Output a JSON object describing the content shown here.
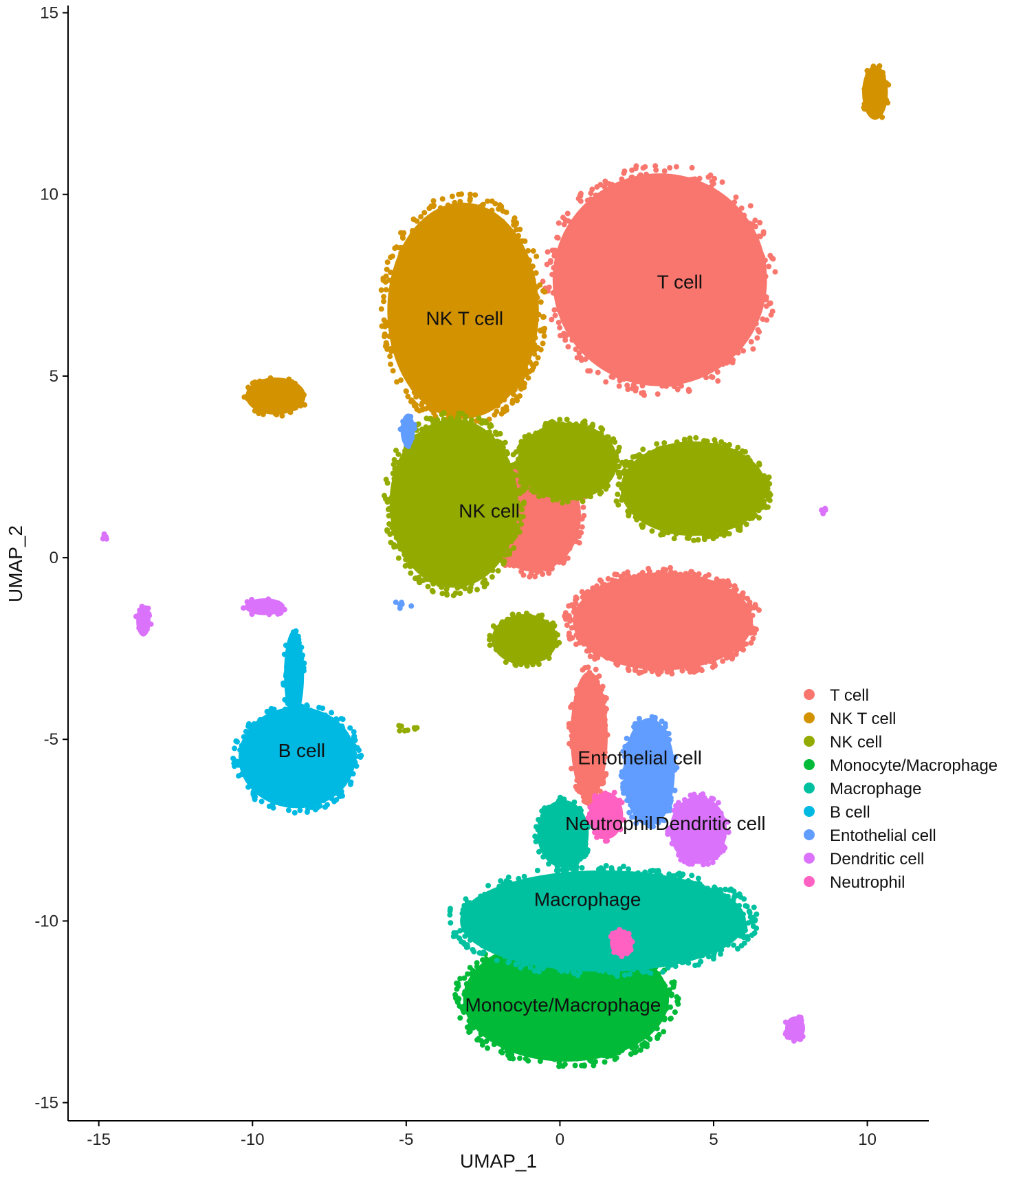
{
  "chart_data": {
    "type": "scatter",
    "xlabel": "UMAP_1",
    "ylabel": "UMAP_2",
    "xlim": [
      -16,
      12
    ],
    "ylim": [
      -15.5,
      15.2
    ],
    "xticks": [
      -15,
      -10,
      -5,
      0,
      5,
      10
    ],
    "yticks": [
      -15,
      -10,
      -5,
      0,
      5,
      10,
      15
    ],
    "grid": false,
    "legend_position": "right",
    "series": [
      {
        "name": "T cell",
        "color": "#F8766D",
        "clusters": [
          {
            "x": [
              -0.5,
              7.0
            ],
            "y": [
              4.5,
              10.8
            ]
          },
          {
            "x": [
              0.2,
              6.5
            ],
            "y": [
              -3.2,
              -0.3
            ]
          },
          {
            "x": [
              0.3,
              1.6
            ],
            "y": [
              -6.8,
              -3.0
            ]
          },
          {
            "x": [
              -2.5,
              0.8
            ],
            "y": [
              -0.5,
              2.8
            ]
          }
        ],
        "label": {
          "text": "T cell",
          "x": 3.9,
          "y": 7.6
        }
      },
      {
        "name": "NK T cell",
        "color": "#D39200",
        "clusters": [
          {
            "x": [
              -5.8,
              -0.5
            ],
            "y": [
              3.6,
              10.0
            ]
          },
          {
            "x": [
              -10.3,
              -8.2
            ],
            "y": [
              3.9,
              5.0
            ]
          },
          {
            "x": [
              9.8,
              10.7
            ],
            "y": [
              12.0,
              13.6
            ]
          }
        ],
        "label": {
          "text": "NK T cell",
          "x": -3.1,
          "y": 6.6
        }
      },
      {
        "name": "NK cell",
        "color": "#93AA00",
        "clusters": [
          {
            "x": [
              -5.7,
              -1.2
            ],
            "y": [
              -1.0,
              4.0
            ]
          },
          {
            "x": [
              -1.5,
              2.0
            ],
            "y": [
              1.5,
              3.8
            ]
          },
          {
            "x": [
              1.8,
              6.9
            ],
            "y": [
              0.5,
              3.3
            ]
          },
          {
            "x": [
              -2.3,
              0.0
            ],
            "y": [
              -3.0,
              -1.5
            ]
          },
          {
            "x": [
              -5.5,
              -4.5
            ],
            "y": [
              -4.8,
              -4.6
            ]
          }
        ],
        "label": {
          "text": "NK cell",
          "x": -2.3,
          "y": 1.3
        }
      },
      {
        "name": "Monocyte/Macrophage",
        "color": "#00BA38",
        "clusters": [
          {
            "x": [
              -3.4,
              3.8
            ],
            "y": [
              -14.0,
              -10.3
            ]
          }
        ],
        "label": {
          "text": "Monocyte/Macrophage",
          "x": 0.1,
          "y": -12.3
        }
      },
      {
        "name": "Macrophage",
        "color": "#00C19F",
        "clusters": [
          {
            "x": [
              -3.6,
              6.4
            ],
            "y": [
              -11.5,
              -8.5
            ]
          },
          {
            "x": [
              -0.8,
              1.0
            ],
            "y": [
              -8.6,
              -6.6
            ]
          }
        ],
        "label": {
          "text": "Macrophage",
          "x": 0.9,
          "y": -9.4
        }
      },
      {
        "name": "B cell",
        "color": "#00B9E3",
        "clusters": [
          {
            "x": [
              -10.6,
              -6.5
            ],
            "y": [
              -7.0,
              -4.0
            ]
          },
          {
            "x": [
              -9.0,
              -8.3
            ],
            "y": [
              -4.5,
              -1.9
            ]
          }
        ],
        "label": {
          "text": "B cell",
          "x": -8.4,
          "y": -5.3
        }
      },
      {
        "name": "Entothelial cell",
        "color": "#619CFF",
        "clusters": [
          {
            "x": [
              2.0,
              3.8
            ],
            "y": [
              -7.5,
              -4.3
            ]
          },
          {
            "x": [
              -5.5,
              -4.8
            ],
            "y": [
              -1.2,
              -1.4
            ]
          },
          {
            "x": [
              -5.2,
              -4.7
            ],
            "y": [
              3.0,
              4.0
            ]
          }
        ],
        "label": {
          "text": "Entothelial cell",
          "x": 2.6,
          "y": -5.5
        }
      },
      {
        "name": "Dendritic cell",
        "color": "#DB72FB",
        "clusters": [
          {
            "x": [
              3.5,
              5.5
            ],
            "y": [
              -8.5,
              -6.5
            ]
          },
          {
            "x": [
              7.3,
              8.0
            ],
            "y": [
              -13.3,
              -12.6
            ]
          },
          {
            "x": [
              -13.8,
              -13.3
            ],
            "y": [
              -2.2,
              -1.3
            ]
          },
          {
            "x": [
              -10.3,
              -8.9
            ],
            "y": [
              -1.6,
              -1.1
            ]
          },
          {
            "x": [
              -14.9,
              -14.7
            ],
            "y": [
              0.5,
              0.7
            ]
          },
          {
            "x": [
              8.5,
              8.7
            ],
            "y": [
              1.2,
              1.4
            ]
          }
        ],
        "label": {
          "text": "Dendritic cell",
          "x": 4.9,
          "y": -7.3
        }
      },
      {
        "name": "Neutrophil",
        "color": "#FF61C3",
        "clusters": [
          {
            "x": [
              0.9,
              2.1
            ],
            "y": [
              -7.8,
              -6.4
            ]
          },
          {
            "x": [
              1.6,
              2.4
            ],
            "y": [
              -11.0,
              -10.2
            ]
          }
        ],
        "label": {
          "text": "Neutrophil",
          "x": 1.6,
          "y": -7.3
        }
      }
    ]
  }
}
